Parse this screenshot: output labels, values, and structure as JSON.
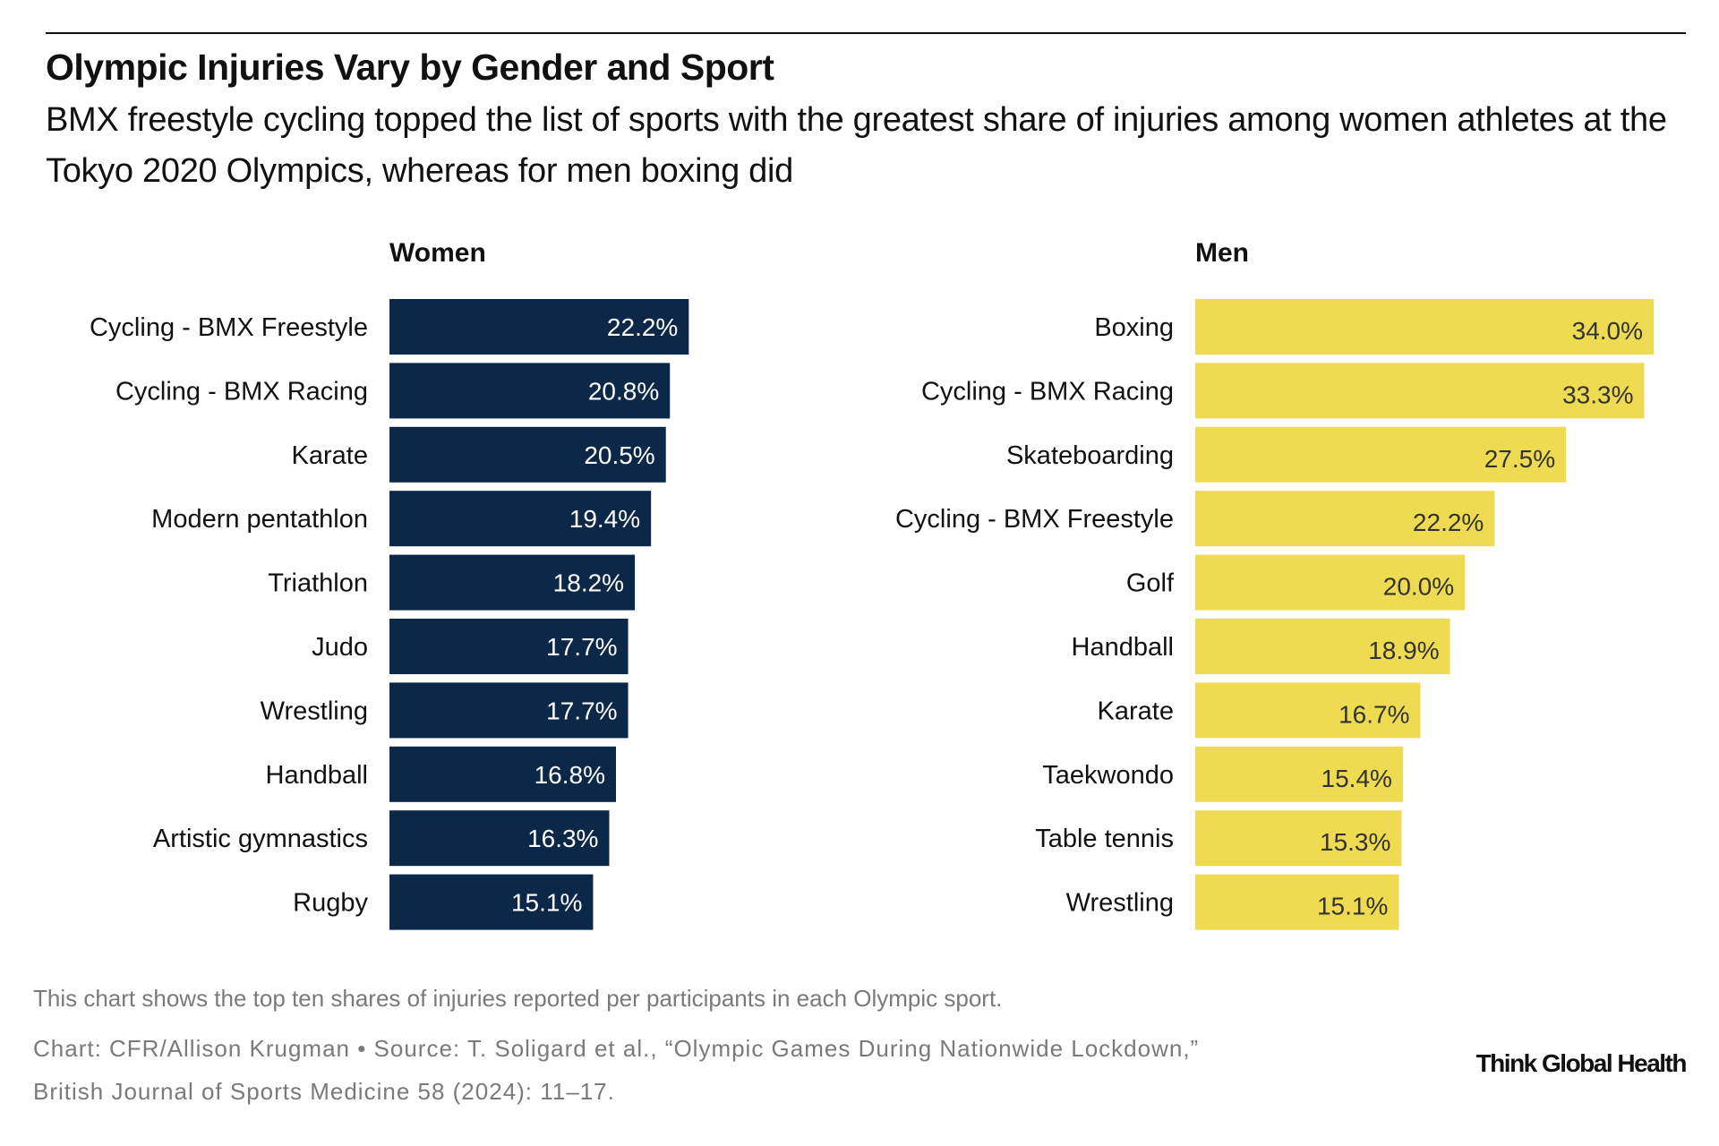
{
  "header": {
    "title": "Olympic Injuries Vary by Gender and Sport",
    "subtitle": "BMX freestyle cycling topped the list of sports with the greatest share of injuries among women athletes at the Tokyo 2020 Olympics, whereas for men boxing did"
  },
  "chart_data": [
    {
      "type": "bar",
      "orientation": "horizontal",
      "title": "Women",
      "color": "#0c2849",
      "label_color": "#ffffff",
      "categories": [
        "Cycling - BMX Freestyle",
        "Cycling - BMX Racing",
        "Karate",
        "Modern pentathlon",
        "Triathlon",
        "Judo",
        "Wrestling",
        "Handball",
        "Artistic gymnastics",
        "Rugby"
      ],
      "values": [
        22.2,
        20.8,
        20.5,
        19.4,
        18.2,
        17.7,
        17.7,
        16.8,
        16.3,
        15.1
      ],
      "labels": [
        "22.2%",
        "20.8%",
        "20.5%",
        "19.4%",
        "18.2%",
        "17.7%",
        "17.7%",
        "16.8%",
        "16.3%",
        "15.1%"
      ],
      "unit": "%",
      "xlim": [
        0,
        35
      ]
    },
    {
      "type": "bar",
      "orientation": "horizontal",
      "title": "Men",
      "color": "#eedb52",
      "label_color": "#333333",
      "categories": [
        "Boxing",
        "Cycling - BMX Racing",
        "Skateboarding",
        "Cycling - BMX Freestyle",
        "Golf",
        "Handball",
        "Karate",
        "Taekwondo",
        "Table tennis",
        "Wrestling"
      ],
      "values": [
        34.0,
        33.3,
        27.5,
        22.2,
        20.0,
        18.9,
        16.7,
        15.4,
        15.3,
        15.1
      ],
      "labels": [
        "34.0%",
        "33.3%",
        "27.5%",
        "22.2%",
        "20.0%",
        "18.9%",
        "16.7%",
        "15.4%",
        "15.3%",
        "15.1%"
      ],
      "unit": "%",
      "xlim": [
        0,
        35
      ]
    }
  ],
  "footer": {
    "note": "This chart shows the top ten shares of injuries reported per participants in each Olympic sport.",
    "source_line1": "Chart: CFR/Allison Krugman • Source: T. Soligard et al., “Olympic Games During Nationwide Lockdown,”",
    "source_line2": "British Journal of Sports Medicine 58 (2024): 11–17.",
    "logo": "Think Global Health"
  }
}
